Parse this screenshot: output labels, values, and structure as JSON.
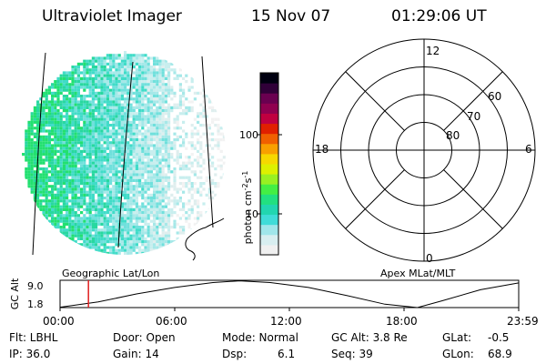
{
  "header": {
    "instrument": "Ultraviolet Imager",
    "date": "15 Nov 07",
    "time": "01:29:06 UT"
  },
  "colorbar": {
    "unit_label": "photon cm",
    "unit_sup1": "-2",
    "unit_mid": "s",
    "unit_sup2": "-1",
    "ticks": [
      {
        "label": "100",
        "value": 100
      },
      {
        "label": "10",
        "value": 10
      }
    ],
    "colors": [
      "#f0f0f0",
      "#d8eef0",
      "#a0e6ea",
      "#40dcd8",
      "#22d6b0",
      "#22e080",
      "#44ee44",
      "#99f022",
      "#ddf000",
      "#f6d800",
      "#f8a000",
      "#f06000",
      "#e02000",
      "#c00040",
      "#900050",
      "#6a0050",
      "#300038",
      "#000010"
    ]
  },
  "left_map": {
    "label": "Geographic Lat/Lon",
    "brightness_colors": [
      "#f2f2f2",
      "#dfeeee",
      "#c8eeee",
      "#a6e8e8",
      "#70e0dc",
      "#40dcc8",
      "#28d8a0",
      "#22e070"
    ]
  },
  "polar_plot": {
    "label": "Apex MLat/MLT",
    "mlt_labels": {
      "top": "12",
      "bottom": "0",
      "left": "18",
      "right": "6"
    },
    "lat_labels": [
      "60",
      "70",
      "80"
    ],
    "rings_deg": [
      50,
      60,
      70,
      80
    ]
  },
  "altitude_plot": {
    "ylabel": "GC Alt",
    "yticks": [
      "9.0",
      "1.8"
    ],
    "xticks": [
      "00:00",
      "06:00",
      "12:00",
      "18:00",
      "23:59"
    ],
    "current_time_hours": 1.485,
    "current_marker_color": "#e02020",
    "altitude_curve": {
      "hours": [
        0,
        2,
        4,
        6,
        8,
        9.4,
        11,
        13,
        15,
        17,
        18.7,
        20,
        22,
        24
      ],
      "values": [
        1.9,
        3.3,
        5.4,
        7.1,
        8.4,
        8.85,
        8.4,
        7.1,
        5.0,
        2.7,
        1.8,
        3.6,
        6.5,
        8.3
      ]
    }
  },
  "status": {
    "filter": "Flt: LBHL",
    "ip": "IP: 36.0",
    "door": "Door: Open",
    "gain": "Gain: 14",
    "mode": "Mode: Normal",
    "dsp": "Dsp:",
    "dsp_value": "6.1",
    "gc_alt": "GC Alt: 3.8 Re",
    "seq": "Seq: 39",
    "glat": "GLat:",
    "glat_value": "-0.5",
    "glon": "GLon:",
    "glon_value": "68.9"
  }
}
